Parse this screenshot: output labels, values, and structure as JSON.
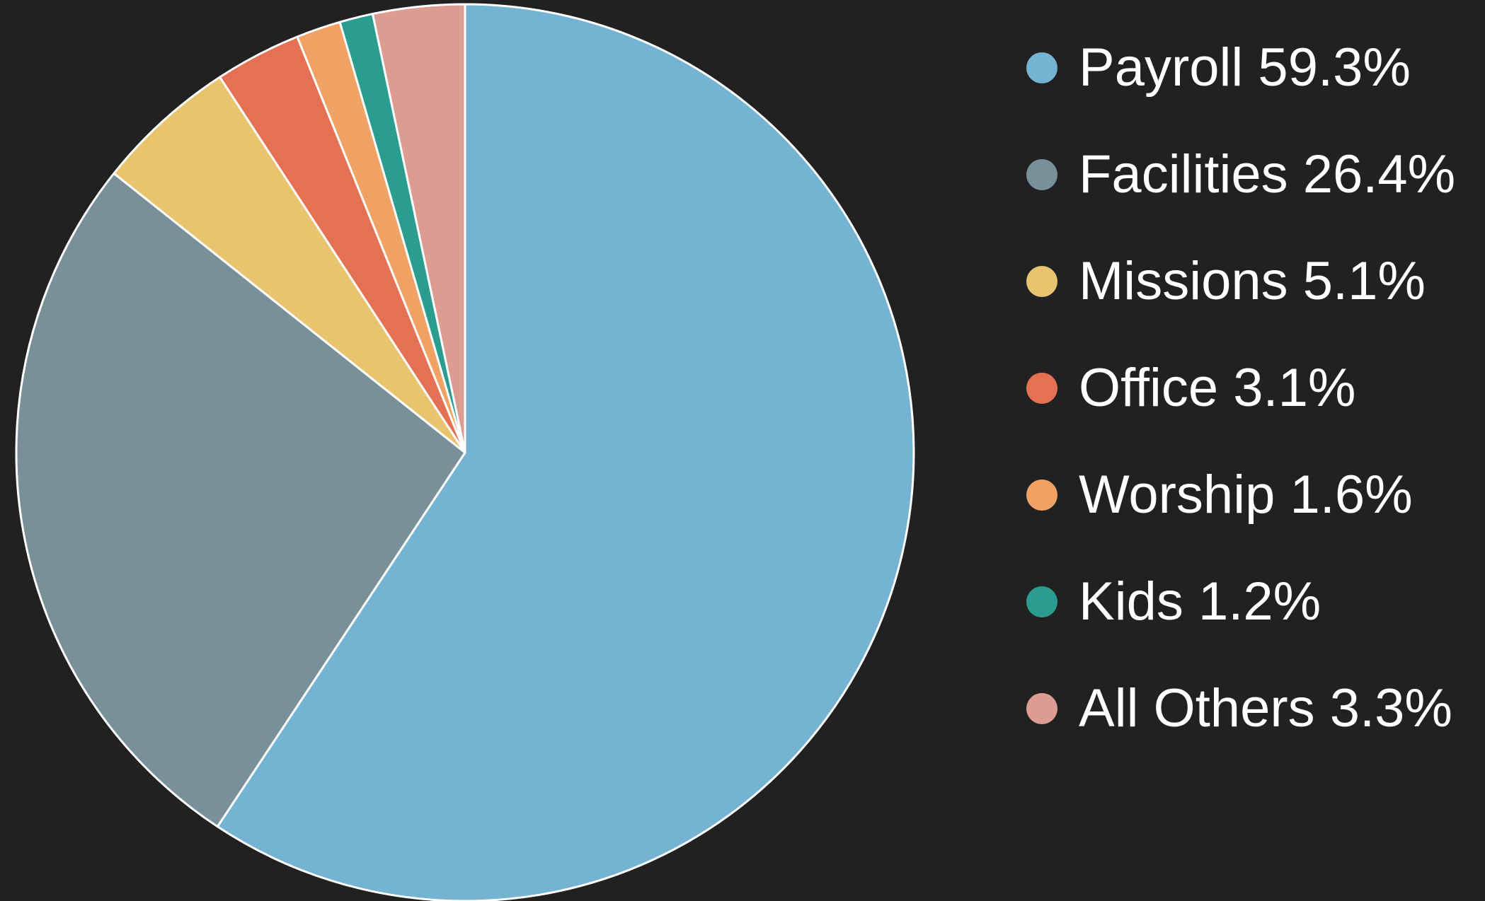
{
  "chart_data": {
    "type": "pie",
    "title": "",
    "slices": [
      {
        "label": "Payroll 59.3%",
        "name": "Payroll",
        "value": 59.3,
        "color": "#74b3d1"
      },
      {
        "label": "Facilities 26.4%",
        "name": "Facilities",
        "value": 26.4,
        "color": "#7a9099"
      },
      {
        "label": "Missions 5.1%",
        "name": "Missions",
        "value": 5.1,
        "color": "#e7c46d"
      },
      {
        "label": "Office 3.1%",
        "name": "Office",
        "value": 3.1,
        "color": "#e57155"
      },
      {
        "label": "Worship 1.6%",
        "name": "Worship",
        "value": 1.6,
        "color": "#f0a164"
      },
      {
        "label": "Kids 1.2%",
        "name": "Kids",
        "value": 1.2,
        "color": "#2a9d8f"
      },
      {
        "label": "All Others 3.3%",
        "name": "All Others",
        "value": 3.3,
        "color": "#dd9c91"
      }
    ],
    "start_angle": "12 o'clock",
    "direction": "clockwise",
    "legend_position": "right",
    "slice_border_color": "#ffffff",
    "background_color": "#212121"
  }
}
